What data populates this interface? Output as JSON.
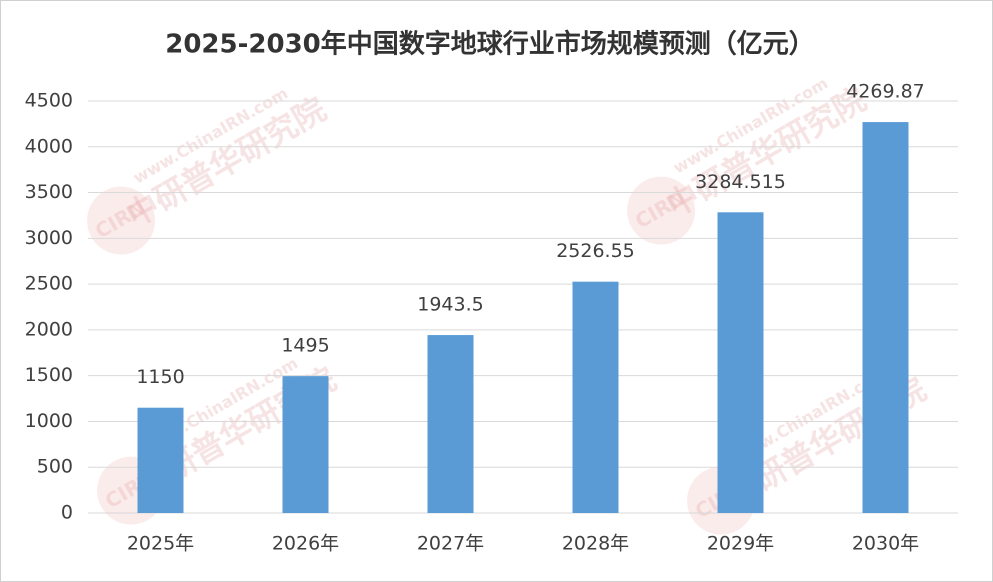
{
  "chart_data": {
    "type": "bar",
    "title": "2025-2030年中国数字地球行业市场规模预测（亿元）",
    "categories": [
      "2025年",
      "2026年",
      "2027年",
      "2028年",
      "2029年",
      "2030年"
    ],
    "values": [
      1150,
      1495,
      1943.5,
      2526.55,
      3284.515,
      4269.87
    ],
    "color": "#5b9bd5",
    "ylim": [
      0,
      4500
    ],
    "yticks": [
      0,
      500,
      1000,
      1500,
      2000,
      2500,
      3000,
      3500,
      4000,
      4500
    ],
    "grid": true,
    "data_labels": true,
    "watermark": {
      "url": "www.ChinaIRN.com",
      "name": "中研普华研究院",
      "logo": "CIRN"
    }
  }
}
